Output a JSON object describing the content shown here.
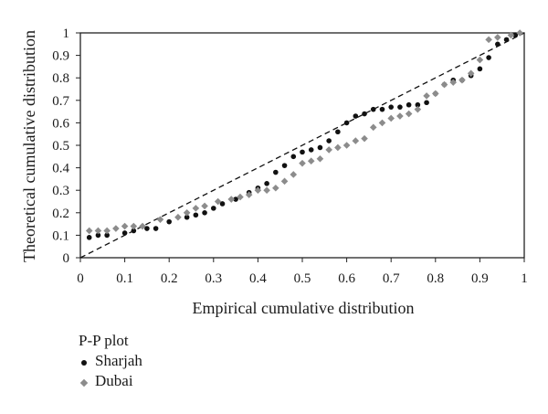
{
  "chart_data": {
    "type": "scatter",
    "xlabel": "Empirical cumulative distribution",
    "ylabel": "Theoretical cumulative distribution",
    "xlim": [
      0,
      1
    ],
    "ylim": [
      0,
      1
    ],
    "xticks": [
      "0",
      "0.1",
      "0.2",
      "0.3",
      "0.4",
      "0.5",
      "0.6",
      "0.7",
      "0.8",
      "0.9",
      "1"
    ],
    "yticks": [
      "0",
      "0.1",
      "0.2",
      "0.3",
      "0.4",
      "0.5",
      "0.6",
      "0.7",
      "0.8",
      "0.9",
      "1"
    ],
    "grid": false,
    "legend": {
      "title": "P-P plot",
      "placement": "bottom-left"
    },
    "reference_line": {
      "style": "dashed",
      "from": [
        0,
        0
      ],
      "to": [
        1,
        1
      ]
    },
    "series": [
      {
        "name": "Sharjah",
        "marker": "circle",
        "color": "#111111",
        "points": [
          [
            0.02,
            0.09
          ],
          [
            0.04,
            0.1
          ],
          [
            0.06,
            0.1
          ],
          [
            0.1,
            0.11
          ],
          [
            0.12,
            0.12
          ],
          [
            0.15,
            0.13
          ],
          [
            0.17,
            0.13
          ],
          [
            0.2,
            0.16
          ],
          [
            0.24,
            0.18
          ],
          [
            0.26,
            0.19
          ],
          [
            0.28,
            0.2
          ],
          [
            0.3,
            0.22
          ],
          [
            0.32,
            0.24
          ],
          [
            0.35,
            0.26
          ],
          [
            0.38,
            0.29
          ],
          [
            0.4,
            0.31
          ],
          [
            0.42,
            0.33
          ],
          [
            0.44,
            0.38
          ],
          [
            0.46,
            0.41
          ],
          [
            0.48,
            0.45
          ],
          [
            0.5,
            0.47
          ],
          [
            0.52,
            0.48
          ],
          [
            0.54,
            0.49
          ],
          [
            0.56,
            0.52
          ],
          [
            0.58,
            0.56
          ],
          [
            0.6,
            0.6
          ],
          [
            0.62,
            0.63
          ],
          [
            0.64,
            0.64
          ],
          [
            0.66,
            0.66
          ],
          [
            0.68,
            0.66
          ],
          [
            0.7,
            0.67
          ],
          [
            0.72,
            0.67
          ],
          [
            0.74,
            0.68
          ],
          [
            0.76,
            0.68
          ],
          [
            0.78,
            0.69
          ],
          [
            0.8,
            0.73
          ],
          [
            0.82,
            0.77
          ],
          [
            0.84,
            0.79
          ],
          [
            0.86,
            0.79
          ],
          [
            0.88,
            0.81
          ],
          [
            0.9,
            0.84
          ],
          [
            0.92,
            0.89
          ],
          [
            0.94,
            0.95
          ],
          [
            0.96,
            0.97
          ],
          [
            0.98,
            0.99
          ]
        ]
      },
      {
        "name": "Dubai",
        "marker": "diamond",
        "color": "#8c8c8c",
        "points": [
          [
            0.02,
            0.12
          ],
          [
            0.04,
            0.12
          ],
          [
            0.06,
            0.12
          ],
          [
            0.08,
            0.13
          ],
          [
            0.1,
            0.14
          ],
          [
            0.12,
            0.14
          ],
          [
            0.14,
            0.14
          ],
          [
            0.18,
            0.17
          ],
          [
            0.22,
            0.18
          ],
          [
            0.24,
            0.2
          ],
          [
            0.26,
            0.22
          ],
          [
            0.28,
            0.23
          ],
          [
            0.31,
            0.25
          ],
          [
            0.34,
            0.26
          ],
          [
            0.36,
            0.27
          ],
          [
            0.38,
            0.28
          ],
          [
            0.4,
            0.3
          ],
          [
            0.42,
            0.3
          ],
          [
            0.44,
            0.31
          ],
          [
            0.46,
            0.34
          ],
          [
            0.48,
            0.37
          ],
          [
            0.5,
            0.42
          ],
          [
            0.52,
            0.43
          ],
          [
            0.54,
            0.44
          ],
          [
            0.56,
            0.48
          ],
          [
            0.58,
            0.49
          ],
          [
            0.6,
            0.5
          ],
          [
            0.62,
            0.52
          ],
          [
            0.64,
            0.53
          ],
          [
            0.66,
            0.58
          ],
          [
            0.68,
            0.6
          ],
          [
            0.7,
            0.62
          ],
          [
            0.72,
            0.63
          ],
          [
            0.74,
            0.64
          ],
          [
            0.76,
            0.66
          ],
          [
            0.78,
            0.72
          ],
          [
            0.8,
            0.73
          ],
          [
            0.82,
            0.77
          ],
          [
            0.84,
            0.78
          ],
          [
            0.86,
            0.79
          ],
          [
            0.88,
            0.82
          ],
          [
            0.9,
            0.88
          ],
          [
            0.92,
            0.97
          ],
          [
            0.94,
            0.98
          ],
          [
            0.97,
            0.99
          ],
          [
            0.99,
            1.0
          ]
        ]
      }
    ]
  }
}
